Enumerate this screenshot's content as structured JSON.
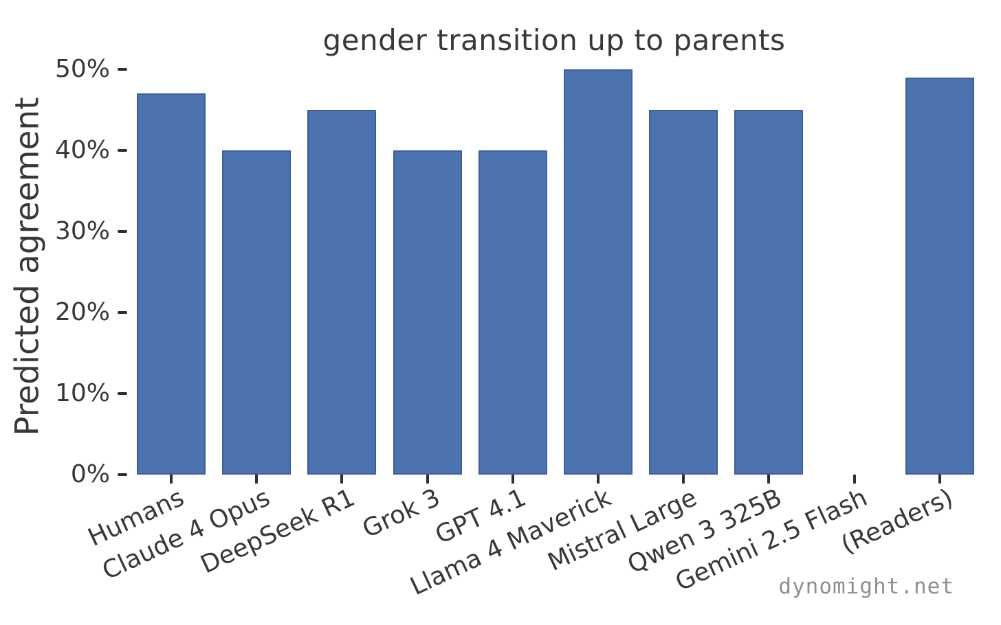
{
  "watermark": {
    "text": "dynomight.net",
    "color": "#8f8f8f"
  },
  "chart_data": {
    "type": "bar",
    "title": "gender transition up to parents",
    "xlabel": "",
    "ylabel": "Predicted agreement",
    "categories": [
      "Humans",
      "Claude 4 Opus",
      "DeepSeek R1",
      "Grok 3",
      "GPT 4.1",
      "Llama 4 Maverick",
      "Mistral Large",
      "Qwen 3 325B",
      "Gemini 2.5 Flash",
      "(Readers)"
    ],
    "values": [
      47,
      40,
      45,
      40,
      40,
      50,
      45,
      45,
      0,
      49
    ],
    "unit": "%",
    "ylim": [
      0,
      50
    ],
    "ytick_values": [
      0,
      10,
      20,
      30,
      40,
      50
    ],
    "ytick_labels": [
      "0%",
      "10%",
      "20%",
      "30%",
      "40%",
      "50%"
    ],
    "xtick_label_rotation_deg": -25,
    "grid": false,
    "legend": null,
    "bar_color": "#4c72b0",
    "bar_edge_color": "#3a5da4",
    "text_color": "#383838",
    "tick_color": "#2e2e2e",
    "background_color": "#ffffff",
    "note": "Gemini 2.5 Flash shows no bar (0)"
  }
}
